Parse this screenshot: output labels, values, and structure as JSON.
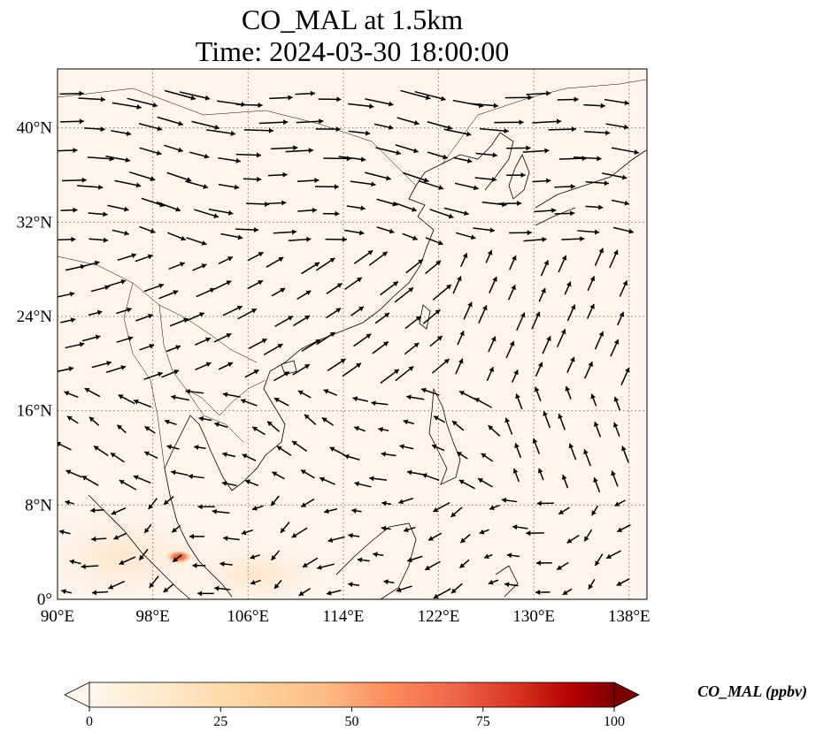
{
  "title": {
    "line1": "CO_MAL at 1.5km",
    "line2": "Time: 2024-03-30 18:00:00"
  },
  "map": {
    "lon_range": [
      90,
      139.5
    ],
    "lat_range": [
      0,
      45
    ],
    "x_ticks": [
      {
        "value": 90,
        "label": "90°E"
      },
      {
        "value": 98,
        "label": "98°E"
      },
      {
        "value": 106,
        "label": "106°E"
      },
      {
        "value": 114,
        "label": "114°E"
      },
      {
        "value": 122,
        "label": "122°E"
      },
      {
        "value": 130,
        "label": "130°E"
      },
      {
        "value": 138,
        "label": "138°E"
      }
    ],
    "y_ticks": [
      {
        "value": 0,
        "label": "0°"
      },
      {
        "value": 8,
        "label": "8°N"
      },
      {
        "value": 16,
        "label": "16°N"
      },
      {
        "value": 24,
        "label": "24°N"
      },
      {
        "value": 32,
        "label": "32°N"
      },
      {
        "value": 40,
        "label": "40°N"
      }
    ],
    "gridlines": "dotted",
    "background_color": "#fff5eb",
    "hotspot": {
      "lon": 100.2,
      "lat": 3.6,
      "value_ppbv": 45
    }
  },
  "colorbar": {
    "label": "CO_MAL (ppbv)",
    "colormap": "OrRd",
    "range": [
      0,
      100
    ],
    "extend": "both",
    "ticks": [
      {
        "value": 0,
        "label": "0"
      },
      {
        "value": 25,
        "label": "25"
      },
      {
        "value": 50,
        "label": "50"
      },
      {
        "value": 75,
        "label": "75"
      },
      {
        "value": 100,
        "label": "100"
      }
    ]
  }
}
